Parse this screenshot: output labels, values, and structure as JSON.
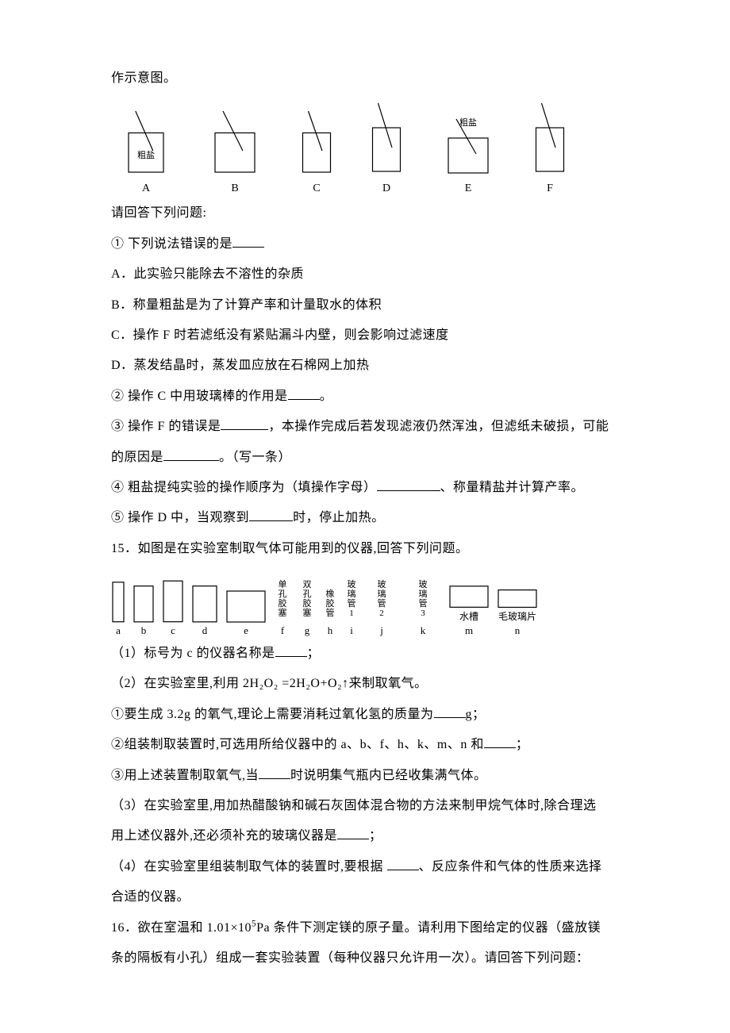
{
  "intro": "作示意图。",
  "fig1": {
    "items": [
      {
        "label": "A",
        "w": 88,
        "h": 90,
        "caption": "粗盐"
      },
      {
        "label": "B",
        "w": 100,
        "h": 90,
        "caption": ""
      },
      {
        "label": "C",
        "w": 70,
        "h": 90,
        "caption": ""
      },
      {
        "label": "D",
        "w": 70,
        "h": 100,
        "caption": ""
      },
      {
        "label": "E",
        "w": 100,
        "h": 80,
        "caption": "粗盐"
      },
      {
        "label": "F",
        "w": 70,
        "h": 100,
        "caption": ""
      }
    ]
  },
  "q_prompt": "请回答下列问题:",
  "q1": {
    "stem": "①  下列说法错误的是",
    "blank_w": 40,
    "opts": {
      "A": "A．此实验只能除去不溶性的杂质",
      "B": "B．称量粗盐是为了计算产率和计量取水的体积",
      "C": "C．操作 F 时若滤纸没有紧贴漏斗内壁，则会影响过滤速度",
      "D": "D．蒸发结晶时，蒸发皿应放在石棉网上加热"
    }
  },
  "q2": {
    "pre": "②  操作 C 中用玻璃棒的作用是",
    "blank_w": 40,
    "post": "。"
  },
  "q3": {
    "pre1": "③  操作 F  的错误是",
    "blank1_w": 60,
    "mid1": "，本操作完成后若发现滤液仍然浑浊，但滤纸未破损，可能",
    "pre2": "的原因是",
    "blank2_w": 70,
    "post2": "。（写一条）"
  },
  "q4": {
    "pre": "④  粗盐提纯实验的操作顺序为（填操作字母）",
    "blank_w": 80,
    "post": "、称量精盐并计算产率。"
  },
  "q5": {
    "pre": "⑤  操作 D 中，当观察到",
    "blank_w": 55,
    "post": "时，停止加热。"
  },
  "q15_stem": "15．如图是在实验室制取气体可能用到的仪器,回答下列问题。",
  "apparatus": [
    {
      "label": "a",
      "w": 18,
      "h": 64,
      "cn": ""
    },
    {
      "label": "b",
      "w": 28,
      "h": 58,
      "cn": ""
    },
    {
      "label": "c",
      "w": 28,
      "h": 66,
      "cn": ""
    },
    {
      "label": "d",
      "w": 34,
      "h": 58,
      "cn": ""
    },
    {
      "label": "e",
      "w": 52,
      "h": 50,
      "cn": ""
    },
    {
      "label": "f",
      "w": 22,
      "h": 56,
      "cn": "单孔胶塞"
    },
    {
      "label": "g",
      "w": 22,
      "h": 56,
      "cn": "双孔胶塞"
    },
    {
      "label": "h",
      "w": 18,
      "h": 56,
      "cn": "橡胶管"
    },
    {
      "label": "i",
      "w": 18,
      "h": 56,
      "cn": "玻璃管1"
    },
    {
      "label": "j",
      "w": 40,
      "h": 50,
      "cn": "玻璃管2"
    },
    {
      "label": "k",
      "w": 46,
      "h": 50,
      "cn": "玻璃管3"
    },
    {
      "label": "m",
      "w": 52,
      "h": 34,
      "cn": "水槽"
    },
    {
      "label": "n",
      "w": 52,
      "h": 28,
      "cn": "毛玻璃片"
    }
  ],
  "q15_1": {
    "pre": "（1）标号为 c 的仪器名称是",
    "blank_w": 40,
    "post": "；"
  },
  "q15_2_stem": "（2）在实验室里,利用 2H₂O₂ =2H₂O+O₂↑来制取氧气。",
  "q15_2_1": {
    "pre": "①要生成 3.2g 的氧气,理论上需要消耗过氧化氢的质量为",
    "blank_w": 40,
    "post": "g；"
  },
  "q15_2_2": {
    "pre": "②组装制取装置时,可选用所给仪器中的 a、b、f、h、k、m、n 和",
    "blank_w": 40,
    "post": "；"
  },
  "q15_2_3": {
    "pre": "③用上述装置制取氧气,当",
    "blank_w": 40,
    "post": "时说明集气瓶内已经收集满气体。"
  },
  "q15_3": {
    "line1": "（3）在实验室里,用加热醋酸钠和碱石灰固体混合物的方法来制甲烷气体时,除合理选",
    "pre2": "用上述仪器外,还必须补充的玻璃仪器是",
    "blank_w": 40,
    "post2": "；"
  },
  "q15_4": {
    "pre": "（4）在实验室里组装制取气体的装置时,要根据 ",
    "blank_w": 40,
    "post": "、反应条件和气体的性质来选择",
    "line2": "合适的仪器。"
  },
  "q16": {
    "line1_pre": "16．欲在室温和 1.01×10",
    "line1_sup": "5",
    "line1_post": "Pa 条件下测定镁的原子量。请利用下图给定的仪器（盛放镁",
    "line2": "条的隔板有小孔）组成一套实验装置（每种仪器只允许用一次）。请回答下列问题："
  },
  "colors": {
    "text": "#000000",
    "bg": "#ffffff",
    "border": "#000000"
  }
}
